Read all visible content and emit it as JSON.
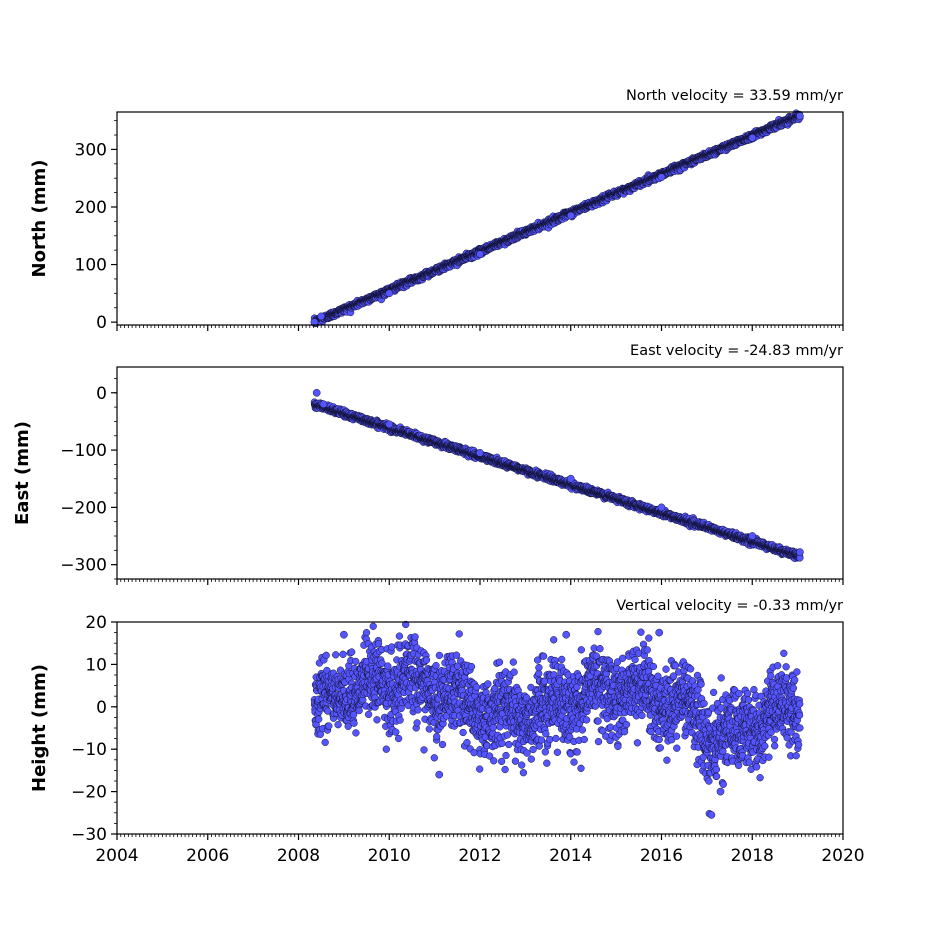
{
  "chart_data": [
    {
      "type": "scatter",
      "title": "North velocity = 33.59 mm/yr",
      "ylabel": "North (mm)",
      "xlim": [
        2004,
        2020
      ],
      "ylim": [
        -5,
        365
      ],
      "yticks": [
        0,
        100,
        200,
        300
      ],
      "x_range": [
        2008.35,
        2019.05
      ],
      "trend": {
        "start": 0,
        "slope": 33.59
      },
      "noise_mm": 2.5,
      "series": [
        {
          "color": "#5555ff",
          "edge_color": "#111133",
          "values": [
            [
              2008.35,
              0
            ],
            [
              2008.5,
              10
            ],
            [
              2010,
              50
            ],
            [
              2012,
              118
            ],
            [
              2014,
              185
            ],
            [
              2016,
              252
            ],
            [
              2018,
              320
            ],
            [
              2019.05,
              358
            ]
          ]
        }
      ]
    },
    {
      "type": "scatter",
      "title": "East velocity = -24.83 mm/yr",
      "ylabel": "East (mm)",
      "xlim": [
        2004,
        2020
      ],
      "ylim": [
        -325,
        45
      ],
      "yticks": [
        0,
        -100,
        -200,
        -300
      ],
      "x_range": [
        2008.35,
        2019.05
      ],
      "trend": {
        "start": -20,
        "slope": -24.83
      },
      "noise_mm": 2.5,
      "series": [
        {
          "color": "#5555ff",
          "edge_color": "#111133",
          "values": [
            [
              2008.4,
              0
            ],
            [
              2008.55,
              -20
            ],
            [
              2010,
              -55
            ],
            [
              2012,
              -105
            ],
            [
              2014,
              -150
            ],
            [
              2016,
              -200
            ],
            [
              2018,
              -250
            ],
            [
              2019.05,
              -278
            ]
          ]
        }
      ]
    },
    {
      "type": "scatter",
      "title": "Vertical velocity = -0.33 mm/yr",
      "ylabel": "Height (mm)",
      "xlim": [
        2004,
        2020
      ],
      "ylim": [
        -30,
        20
      ],
      "yticks": [
        20,
        10,
        0,
        -10,
        -20,
        -30
      ],
      "x_range": [
        2008.35,
        2019.05
      ],
      "trend": {
        "start": 3,
        "slope": -0.33
      },
      "noise_mm": 4.5,
      "xticks": [
        2004,
        2006,
        2008,
        2010,
        2012,
        2014,
        2016,
        2018,
        2020
      ],
      "series": [
        {
          "color": "#5555ff",
          "edge_color": "#111133",
          "values": [
            [
              2009,
              17
            ],
            [
              2013.9,
              17
            ],
            [
              2015.95,
              17.5
            ],
            [
              2017.1,
              -25.5
            ],
            [
              2011.1,
              -16
            ],
            [
              2017.3,
              -20
            ]
          ]
        }
      ]
    }
  ]
}
